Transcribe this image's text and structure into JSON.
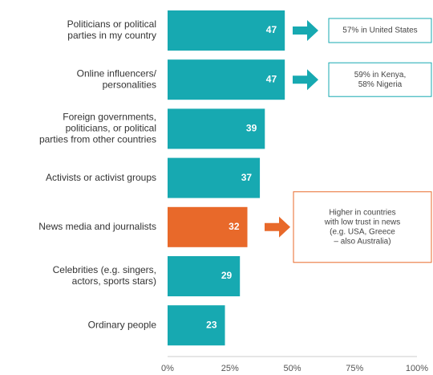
{
  "chart_data": {
    "type": "barh",
    "categories": [
      [
        "Politicians or political",
        "parties in my country"
      ],
      [
        "Online influencers/",
        "personalities"
      ],
      [
        "Foreign governments,",
        "politicians, or political",
        "parties from other countries"
      ],
      [
        "Activists or activist groups"
      ],
      [
        "News media and journalists"
      ],
      [
        "Celebrities (e.g. singers,",
        "actors, sports stars)"
      ],
      [
        "Ordinary people"
      ]
    ],
    "values": [
      47,
      47,
      39,
      37,
      32,
      29,
      23
    ],
    "colors": [
      "#17a9b1",
      "#17a9b1",
      "#17a9b1",
      "#17a9b1",
      "#e8692a",
      "#17a9b1",
      "#17a9b1"
    ],
    "xlim": [
      0,
      100
    ],
    "xticks": [
      {
        "value": 0,
        "label": "0%"
      },
      {
        "value": 25,
        "label": "25%"
      },
      {
        "value": 50,
        "label": "50%"
      },
      {
        "value": 75,
        "label": "75%"
      },
      {
        "value": 100,
        "label": "100%"
      }
    ],
    "annotations": [
      {
        "lines": [
          "57% in United States"
        ],
        "color": "#17a9b1"
      },
      {
        "lines": [
          "59% in Kenya,",
          "58% Nigeria"
        ],
        "color": "#17a9b1"
      },
      {
        "lines": [
          "Higher in countries",
          "with low trust in news",
          "(e.g. USA, Greece",
          "– also Australia)"
        ],
        "color": "#e8692a"
      }
    ]
  }
}
